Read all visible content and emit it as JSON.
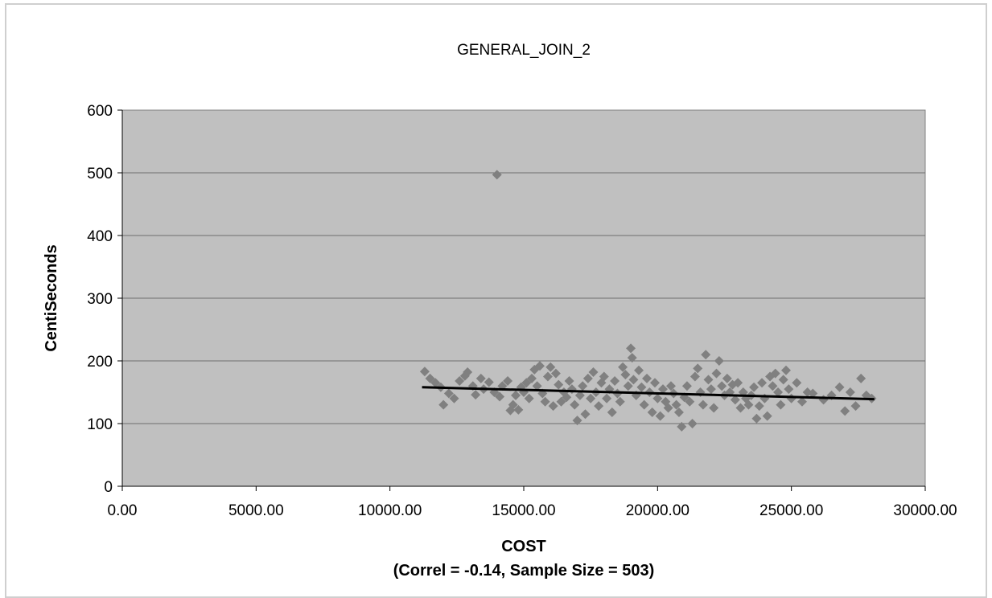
{
  "chart_data": {
    "type": "scatter",
    "title": "GENERAL_JOIN_2",
    "xlabel": "COST",
    "xlabel_sub": "(Correl = -0.14, Sample Size = 503)",
    "ylabel": "CentiSeconds",
    "xlim": [
      0,
      30000
    ],
    "ylim": [
      0,
      600
    ],
    "x_ticks": [
      "0.00",
      "5000.00",
      "10000.00",
      "15000.00",
      "20000.00",
      "25000.00",
      "30000.00"
    ],
    "y_ticks": [
      "0",
      "100",
      "200",
      "300",
      "400",
      "500",
      "600"
    ],
    "grid": "horizontal",
    "legend": "none",
    "colors": {
      "plot_background": "#c0c0c0",
      "marker": "#808080",
      "trendline": "#000000",
      "gridline": "#6e6e6e"
    },
    "trendline": {
      "x": [
        11200,
        28100
      ],
      "y": [
        158,
        139
      ]
    },
    "series": [
      {
        "marker": "diamond",
        "points": [
          [
            14000,
            497
          ],
          [
            11300,
            183
          ],
          [
            11500,
            172
          ],
          [
            11700,
            165
          ],
          [
            11900,
            158
          ],
          [
            12000,
            130
          ],
          [
            12200,
            148
          ],
          [
            12400,
            140
          ],
          [
            12600,
            168
          ],
          [
            12800,
            176
          ],
          [
            12900,
            182
          ],
          [
            13100,
            160
          ],
          [
            13200,
            146
          ],
          [
            13400,
            172
          ],
          [
            13500,
            155
          ],
          [
            13700,
            166
          ],
          [
            13900,
            150
          ],
          [
            14100,
            143
          ],
          [
            14200,
            160
          ],
          [
            14400,
            168
          ],
          [
            14500,
            121
          ],
          [
            14600,
            130
          ],
          [
            14700,
            145
          ],
          [
            14800,
            122
          ],
          [
            14900,
            158
          ],
          [
            15000,
            150
          ],
          [
            15100,
            165
          ],
          [
            15200,
            140
          ],
          [
            15300,
            172
          ],
          [
            15400,
            186
          ],
          [
            15500,
            160
          ],
          [
            15600,
            192
          ],
          [
            15700,
            148
          ],
          [
            15800,
            135
          ],
          [
            15900,
            175
          ],
          [
            16000,
            190
          ],
          [
            16100,
            128
          ],
          [
            16200,
            180
          ],
          [
            16300,
            162
          ],
          [
            16400,
            135
          ],
          [
            16500,
            150
          ],
          [
            16600,
            142
          ],
          [
            16700,
            168
          ],
          [
            16800,
            155
          ],
          [
            16900,
            130
          ],
          [
            17000,
            105
          ],
          [
            17100,
            145
          ],
          [
            17200,
            160
          ],
          [
            17300,
            115
          ],
          [
            17400,
            172
          ],
          [
            17500,
            140
          ],
          [
            17600,
            182
          ],
          [
            17700,
            150
          ],
          [
            17800,
            128
          ],
          [
            17900,
            165
          ],
          [
            18000,
            175
          ],
          [
            18100,
            140
          ],
          [
            18200,
            155
          ],
          [
            18300,
            118
          ],
          [
            18400,
            168
          ],
          [
            18500,
            148
          ],
          [
            18600,
            135
          ],
          [
            18700,
            190
          ],
          [
            18800,
            178
          ],
          [
            18900,
            160
          ],
          [
            19000,
            220
          ],
          [
            19050,
            205
          ],
          [
            19100,
            170
          ],
          [
            19200,
            145
          ],
          [
            19300,
            185
          ],
          [
            19400,
            158
          ],
          [
            19500,
            130
          ],
          [
            19600,
            172
          ],
          [
            19700,
            150
          ],
          [
            19800,
            118
          ],
          [
            19900,
            165
          ],
          [
            20000,
            140
          ],
          [
            20100,
            112
          ],
          [
            20200,
            155
          ],
          [
            20300,
            135
          ],
          [
            20400,
            125
          ],
          [
            20500,
            160
          ],
          [
            20600,
            148
          ],
          [
            20700,
            130
          ],
          [
            20800,
            118
          ],
          [
            20900,
            95
          ],
          [
            21000,
            142
          ],
          [
            21100,
            160
          ],
          [
            21200,
            135
          ],
          [
            21300,
            100
          ],
          [
            21400,
            175
          ],
          [
            21500,
            188
          ],
          [
            21600,
            150
          ],
          [
            21700,
            130
          ],
          [
            21800,
            210
          ],
          [
            21900,
            170
          ],
          [
            22000,
            155
          ],
          [
            22100,
            125
          ],
          [
            22200,
            180
          ],
          [
            22300,
            200
          ],
          [
            22400,
            160
          ],
          [
            22500,
            145
          ],
          [
            22600,
            172
          ],
          [
            22700,
            150
          ],
          [
            22800,
            162
          ],
          [
            22900,
            138
          ],
          [
            23000,
            165
          ],
          [
            23100,
            125
          ],
          [
            23200,
            150
          ],
          [
            23300,
            140
          ],
          [
            23400,
            130
          ],
          [
            23500,
            145
          ],
          [
            23600,
            158
          ],
          [
            23700,
            108
          ],
          [
            23800,
            128
          ],
          [
            23900,
            165
          ],
          [
            24000,
            140
          ],
          [
            24100,
            112
          ],
          [
            24200,
            175
          ],
          [
            24300,
            160
          ],
          [
            24400,
            180
          ],
          [
            24500,
            150
          ],
          [
            24600,
            130
          ],
          [
            24700,
            170
          ],
          [
            24800,
            185
          ],
          [
            24900,
            155
          ],
          [
            25000,
            140
          ],
          [
            25200,
            165
          ],
          [
            25400,
            135
          ],
          [
            25600,
            150
          ],
          [
            25800,
            148
          ],
          [
            26200,
            138
          ],
          [
            26500,
            145
          ],
          [
            26800,
            158
          ],
          [
            27000,
            120
          ],
          [
            27200,
            150
          ],
          [
            27400,
            128
          ],
          [
            27600,
            172
          ],
          [
            27800,
            145
          ],
          [
            28000,
            140
          ]
        ]
      }
    ]
  }
}
